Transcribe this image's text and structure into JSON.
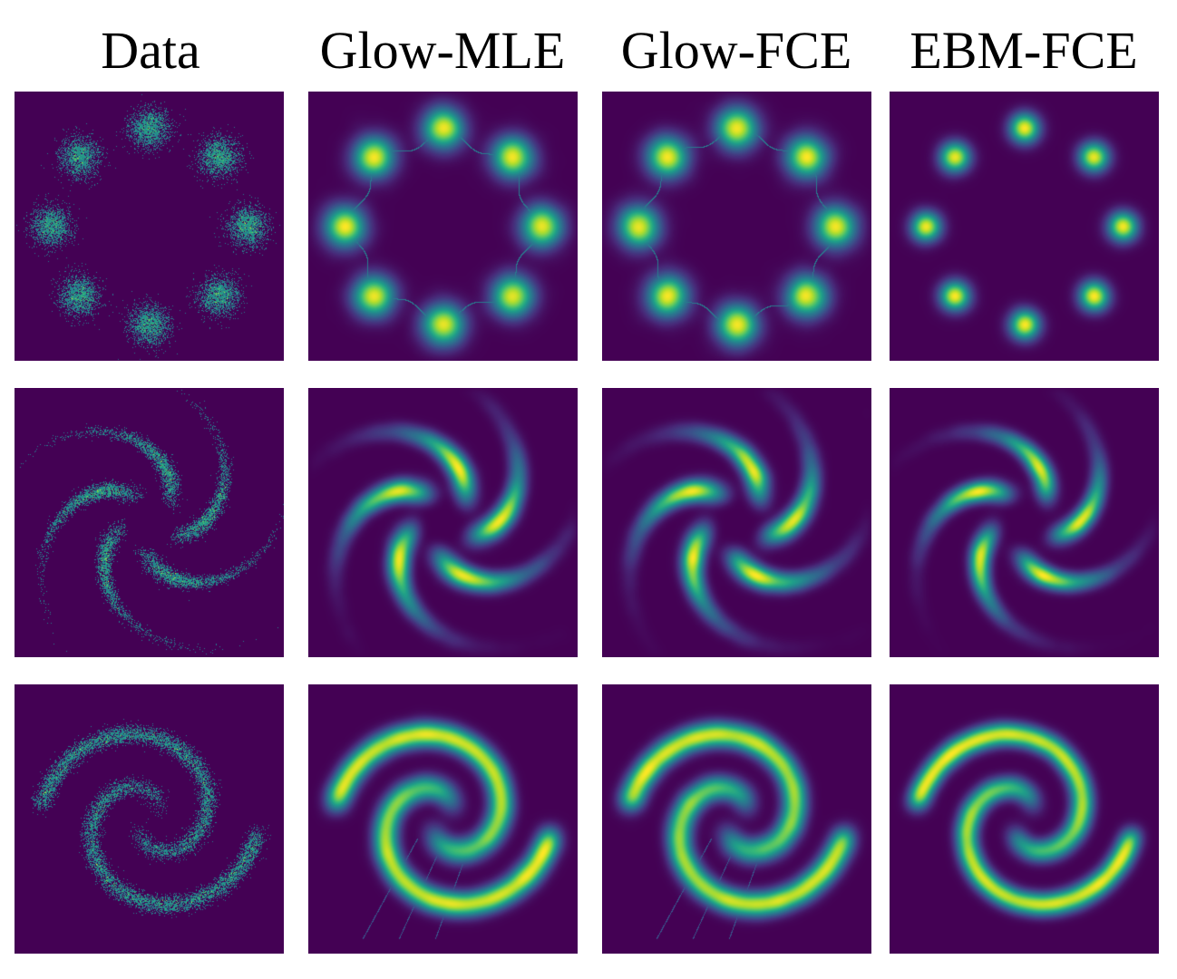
{
  "columns": [
    {
      "title": "Data",
      "method": "samples"
    },
    {
      "title": "Glow-MLE",
      "method": "glow-mle"
    },
    {
      "title": "Glow-FCE",
      "method": "glow-fce"
    },
    {
      "title": "EBM-FCE",
      "method": "ebm-fce"
    }
  ],
  "rows": [
    {
      "dataset": "8-gaussians"
    },
    {
      "dataset": "pinwheel"
    },
    {
      "dataset": "2-spirals"
    }
  ],
  "colormap": {
    "name": "viridis",
    "low": "#440154",
    "mid": "#21918c",
    "high": "#fde725"
  }
}
